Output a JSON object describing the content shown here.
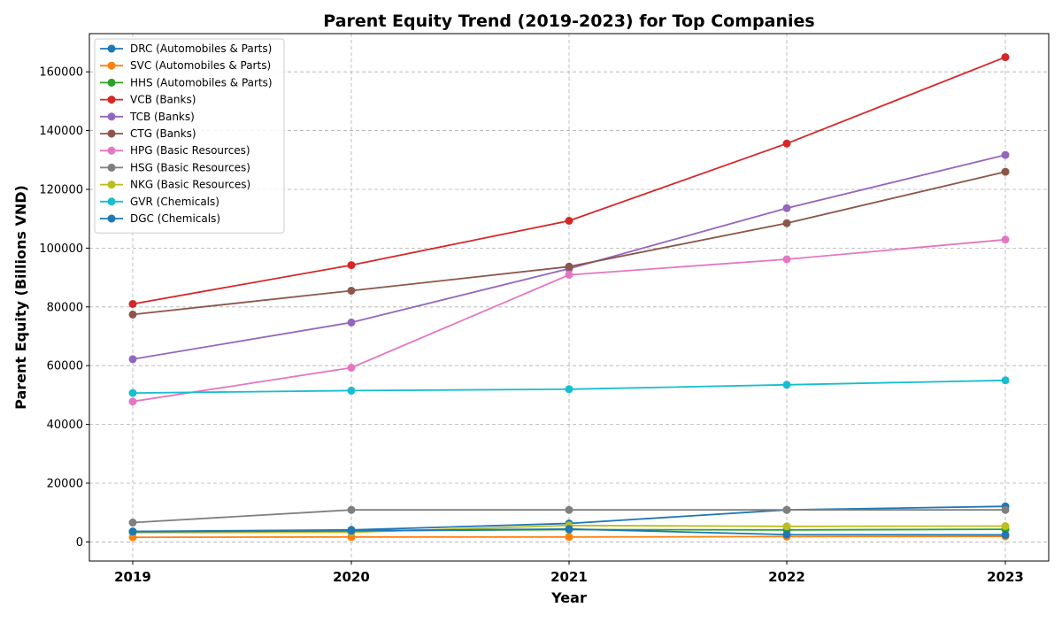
{
  "chart_data": {
    "type": "line",
    "title": "Parent Equity Trend (2019-2023) for Top Companies",
    "xlabel": "Year",
    "ylabel": "Parent Equity (Billions VND)",
    "x": [
      "2019",
      "2020",
      "2021",
      "2022",
      "2023"
    ],
    "ylim": [
      -6500,
      173000
    ],
    "yticks": [
      0,
      20000,
      40000,
      60000,
      80000,
      100000,
      120000,
      140000,
      160000
    ],
    "grid": true,
    "legend_position": "top-left",
    "series": [
      {
        "name": "DRC (Automobiles & Parts)",
        "color": "#1f77b4",
        "values": [
          3600,
          4100,
          6300,
          10900,
          12100
        ]
      },
      {
        "name": "SVC (Automobiles & Parts)",
        "color": "#ff7f0e",
        "values": [
          1600,
          1700,
          1700,
          1800,
          1900
        ]
      },
      {
        "name": "HHS (Automobiles & Parts)",
        "color": "#2ca02c",
        "values": [
          3400,
          3800,
          4200,
          4100,
          4300
        ]
      },
      {
        "name": "VCB (Banks)",
        "color": "#d62728",
        "values": [
          81000,
          94200,
          109300,
          135600,
          165000
        ]
      },
      {
        "name": "TCB (Banks)",
        "color": "#9467bd",
        "values": [
          62200,
          74700,
          93000,
          113600,
          131700
        ]
      },
      {
        "name": "CTG (Banks)",
        "color": "#8c564b",
        "values": [
          77400,
          85500,
          93700,
          108500,
          126000
        ]
      },
      {
        "name": "HPG (Basic Resources)",
        "color": "#e377c2",
        "values": [
          47800,
          59300,
          90900,
          96200,
          102900
        ]
      },
      {
        "name": "HSG (Basic Resources)",
        "color": "#7f7f7f",
        "values": [
          6600,
          10900,
          10900,
          10900,
          10900
        ]
      },
      {
        "name": "NKG (Basic Resources)",
        "color": "#bcbd22",
        "values": [
          3200,
          3300,
          5600,
          5300,
          5400
        ]
      },
      {
        "name": "GVR (Chemicals)",
        "color": "#17becf",
        "values": [
          50700,
          51500,
          52000,
          53500,
          55000
        ]
      },
      {
        "name": "DGC (Chemicals)",
        "color": "#1f77b4",
        "values": [
          3500,
          3800,
          4400,
          2500,
          2400
        ]
      }
    ]
  }
}
